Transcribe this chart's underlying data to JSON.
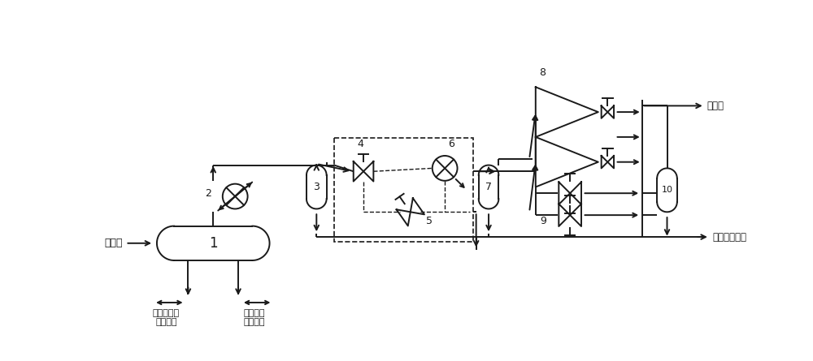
{
  "bg_color": "#ffffff",
  "lc": "#1a1a1a",
  "lw": 1.4,
  "labels": {
    "well_fluid": "井流物",
    "produced_water": "生产水去水\n处理系统",
    "crude_oil": "原油去下\n一级脱水",
    "to_sea": "去海管",
    "to_closed_tank": "去闭式排放罐"
  }
}
